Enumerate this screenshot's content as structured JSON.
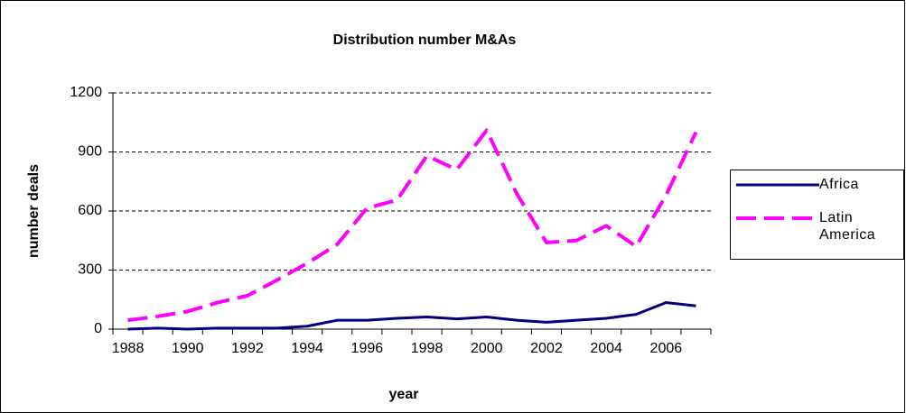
{
  "chart_data": {
    "type": "line",
    "title": "Distribution number M&As",
    "x_label": "year",
    "y_label": "number deals",
    "categories": [
      "1988",
      null,
      "1990",
      null,
      "1992",
      null,
      "1994",
      null,
      "1996",
      null,
      "1998",
      null,
      "2000",
      null,
      "2002",
      null,
      "2004",
      null,
      "2006",
      null
    ],
    "series": [
      {
        "name": "Africa",
        "color": "#000080",
        "dash": false,
        "values": [
          0,
          5,
          0,
          5,
          5,
          5,
          15,
          45,
          45,
          55,
          62,
          52,
          62,
          45,
          35,
          45,
          55,
          75,
          135,
          118
        ]
      },
      {
        "name": "Latin America",
        "color": "#ff00ff",
        "dash": true,
        "values": [
          45,
          65,
          90,
          135,
          170,
          250,
          335,
          430,
          615,
          655,
          880,
          810,
          1010,
          690,
          440,
          450,
          525,
          420,
          680,
          1000
        ]
      }
    ],
    "ylim": [
      0,
      1200
    ],
    "yticks": [
      0,
      300,
      600,
      900,
      1200
    ],
    "grid": true,
    "legend": "right"
  }
}
